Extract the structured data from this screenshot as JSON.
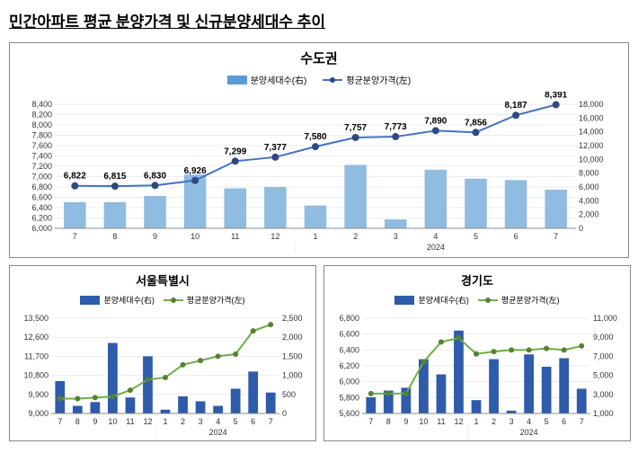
{
  "page_title": "민간아파트 평균 분양가격 및 신규분양세대수 추이",
  "main_chart": {
    "title": "수도권",
    "legend": {
      "bars": "분양세대수(右)",
      "line": "평균분양가격(左)"
    },
    "categories": [
      "7",
      "8",
      "9",
      "10",
      "11",
      "12",
      "1",
      "2",
      "3",
      "4",
      "5",
      "6",
      "7"
    ],
    "year_label": "2024",
    "line_values": [
      6822,
      6815,
      6830,
      6926,
      7299,
      7377,
      7580,
      7757,
      7773,
      7890,
      7856,
      8187,
      8391
    ],
    "bar_values": [
      3800,
      3800,
      4700,
      7800,
      5800,
      6000,
      3300,
      9200,
      1300,
      8500,
      7200,
      7000,
      5600
    ],
    "left_axis": {
      "min": 6000,
      "max": 8400,
      "step": 200
    },
    "right_axis": {
      "min": 0,
      "max": 18000,
      "step": 2000
    },
    "bar_color": "#8fbce0",
    "line_color": "#4472c4",
    "marker_color": "#2e4880"
  },
  "seoul_chart": {
    "title": "서울특별시",
    "legend": {
      "bars": "분양세대수(右)",
      "line": "평균분양가격(左)"
    },
    "categories": [
      "7",
      "8",
      "9",
      "10",
      "11",
      "12",
      "1",
      "2",
      "3",
      "4",
      "5",
      "6",
      "7"
    ],
    "year_label": "2024",
    "line_values": [
      9700,
      9700,
      9750,
      9800,
      10100,
      10600,
      10700,
      11300,
      11500,
      11700,
      11800,
      12900,
      13200
    ],
    "bar_values": [
      850,
      200,
      300,
      1850,
      420,
      1500,
      100,
      450,
      320,
      200,
      650,
      1100,
      550
    ],
    "left_axis": {
      "min": 9000,
      "max": 13500,
      "step": 900
    },
    "right_axis": {
      "min": 0,
      "max": 2500,
      "step": 500
    },
    "bar_color": "#2e5baa",
    "line_color": "#70ad47",
    "marker_color": "#548235"
  },
  "gyeonggi_chart": {
    "title": "경기도",
    "legend": {
      "bars": "분양세대수(右)",
      "line": "평균분양가격(左)"
    },
    "categories": [
      "7",
      "8",
      "9",
      "10",
      "11",
      "12",
      "1",
      "2",
      "3",
      "4",
      "5",
      "6",
      "7"
    ],
    "year_label": "2024",
    "line_values": [
      5850,
      5850,
      5850,
      6250,
      6500,
      6550,
      6350,
      6380,
      6400,
      6400,
      6420,
      6400,
      6450
    ],
    "bar_values": [
      2700,
      3400,
      3700,
      6700,
      5100,
      9700,
      2400,
      6700,
      1300,
      7200,
      5900,
      6800,
      3600
    ],
    "left_axis": {
      "min": 5600,
      "max": 6800,
      "step": 200
    },
    "right_axis": {
      "min": 1000,
      "max": 11000,
      "step": 2000
    },
    "bar_color": "#2e5baa",
    "line_color": "#70ad47",
    "marker_color": "#548235"
  }
}
